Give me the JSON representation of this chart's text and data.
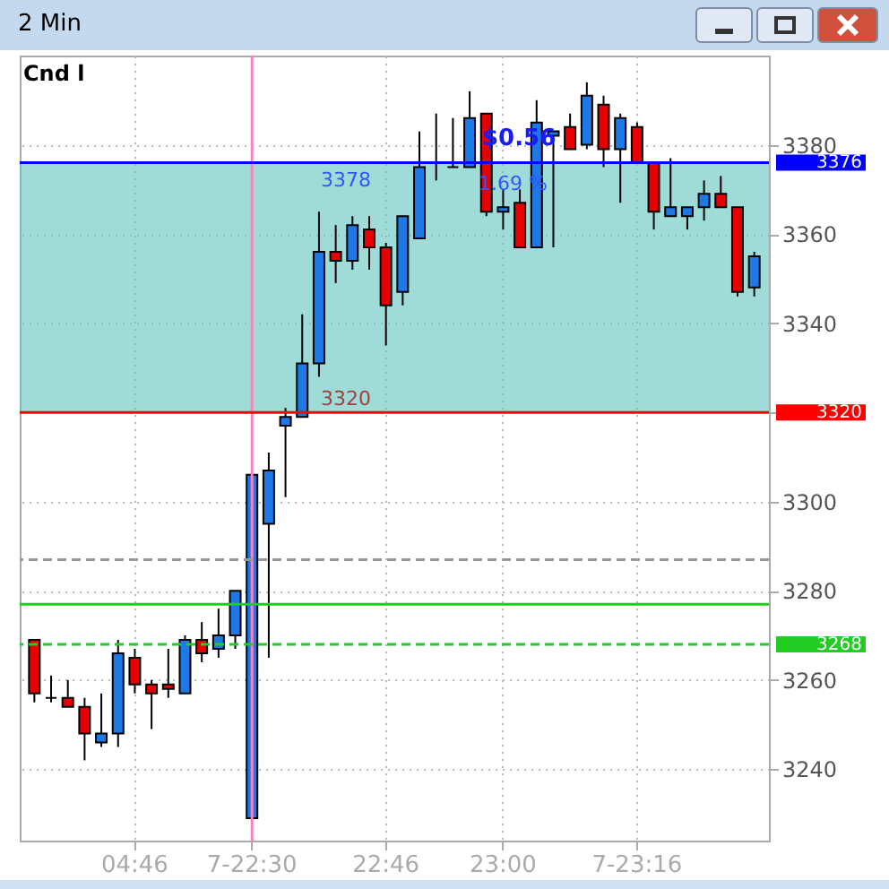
{
  "chart_data": {
    "type": "candlestick",
    "title": "2 Min",
    "categories": [
      null,
      null,
      null,
      null,
      null,
      null,
      "04:46",
      null,
      null,
      null,
      null,
      null,
      null,
      "7-22:30",
      null,
      null,
      null,
      null,
      null,
      null,
      null,
      "22:46",
      null,
      null,
      null,
      null,
      null,
      null,
      "23:00",
      null,
      null,
      null,
      null,
      null,
      null,
      null,
      "7-23:16",
      null,
      null,
      null,
      null,
      null,
      null,
      null
    ],
    "ohlc": [
      [
        3269,
        3269,
        3255,
        3257
      ],
      [
        3256,
        3261,
        3255,
        3256
      ],
      [
        3256,
        3260,
        3254,
        3254
      ],
      [
        3254,
        3256,
        3242,
        3248
      ],
      [
        3246,
        3257,
        3245,
        3248
      ],
      [
        3248,
        3269,
        3245,
        3266
      ],
      [
        3265,
        3267,
        3257,
        3259
      ],
      [
        3259,
        3260,
        3249,
        3257
      ],
      [
        3259,
        3267,
        3256,
        3258
      ],
      [
        3257,
        3270,
        3257,
        3269
      ],
      [
        3269,
        3273,
        3264,
        3266
      ],
      [
        3267,
        3276,
        3265,
        3270
      ],
      [
        3270,
        3280,
        3267,
        3280
      ],
      [
        3229,
        3306,
        3229,
        3306
      ],
      [
        3295,
        3311,
        3265,
        3307
      ],
      [
        3317,
        3321,
        3301,
        3319
      ],
      [
        3319,
        3342,
        3319,
        3331
      ],
      [
        3331,
        3365,
        3328,
        3356
      ],
      [
        3356,
        3362,
        3349,
        3354
      ],
      [
        3354,
        3364,
        3352,
        3362
      ],
      [
        3361,
        3364,
        3352,
        3357
      ],
      [
        3357,
        3358,
        3335,
        3344
      ],
      [
        3347,
        3364,
        3344,
        3364
      ],
      [
        3359,
        3383,
        3359,
        3375
      ],
      [
        3376,
        3387,
        3372,
        3376
      ],
      [
        3375,
        3386,
        3375,
        3375
      ],
      [
        3375,
        3392,
        3375,
        3386
      ],
      [
        3387,
        3387,
        3364,
        3365
      ],
      [
        3365,
        3370,
        3361,
        3366
      ],
      [
        3367,
        3370,
        3357,
        3357
      ],
      [
        3357,
        3390,
        3357,
        3385
      ],
      [
        3382,
        3383,
        3357,
        3383
      ],
      [
        3384,
        3387,
        3379,
        3379
      ],
      [
        3380,
        3394,
        3379,
        3391
      ],
      [
        3389,
        3391,
        3375,
        3379
      ],
      [
        3379,
        3387,
        3367,
        3386
      ],
      [
        3384,
        3385,
        3376,
        3376
      ],
      [
        3376,
        3376,
        3361,
        3365
      ],
      [
        3364,
        3377,
        3364,
        3366
      ],
      [
        3364,
        3366,
        3361,
        3366
      ],
      [
        3366,
        3372,
        3363,
        3369
      ],
      [
        3369,
        3373,
        3366,
        3366
      ],
      [
        3366,
        3366,
        3346,
        3347
      ],
      [
        3348,
        3356,
        3346,
        3355
      ]
    ],
    "colors": [
      "#e60000",
      "#000000",
      "#e60000",
      "#e60000",
      "#1e78e6",
      "#1e78e6",
      "#e60000",
      "#e60000",
      "#e60000",
      "#1e78e6",
      "#e60000",
      "#1e78e6",
      "#1e78e6",
      "#1e78e6",
      "#1e78e6",
      "#1e78e6",
      "#1e78e6",
      "#1e78e6",
      "#e60000",
      "#1e78e6",
      "#e60000",
      "#e60000",
      "#1e78e6",
      "#1e78e6",
      "#000000",
      "#000000",
      "#1e78e6",
      "#e60000",
      "#1e78e6",
      "#e60000",
      "#1e78e6",
      "#1e78e6",
      "#e60000",
      "#1e78e6",
      "#e60000",
      "#1e78e6",
      "#e60000",
      "#e60000",
      "#1e78e6",
      "#1e78e6",
      "#1e78e6",
      "#e60000",
      "#e60000",
      "#1e78e6"
    ],
    "ylim": [
      3224,
      3400
    ],
    "yticks": [
      3240,
      3260,
      3280,
      3300,
      {
        "value": 3320,
        "label": null
      },
      3340,
      3360,
      3380
    ],
    "grid": true,
    "ref_lines": [
      {
        "axis": "x",
        "value": "7-22:30",
        "color": "#ff80c0"
      },
      {
        "axis": "y",
        "value": 3376,
        "label": "3376",
        "color": "#0000ff"
      },
      {
        "axis": "y",
        "value": 3320,
        "label": "3320",
        "color": "#ff0000"
      },
      {
        "axis": "y",
        "value": 3287,
        "color": "#999999",
        "line_style": "dashed"
      },
      {
        "axis": "y",
        "value": 3277,
        "color": "#22cc22"
      },
      {
        "axis": "y",
        "value": 3268,
        "label": "3268",
        "color": "#22cc22",
        "line_style": "dashed"
      }
    ],
    "bands": [
      {
        "axis": "y",
        "from": 3320,
        "to": 3376,
        "color": "#5fc4be"
      }
    ],
    "annotations": [
      "Cnd l",
      "$0.56",
      "1.69 %",
      "3378",
      "3320"
    ]
  }
}
